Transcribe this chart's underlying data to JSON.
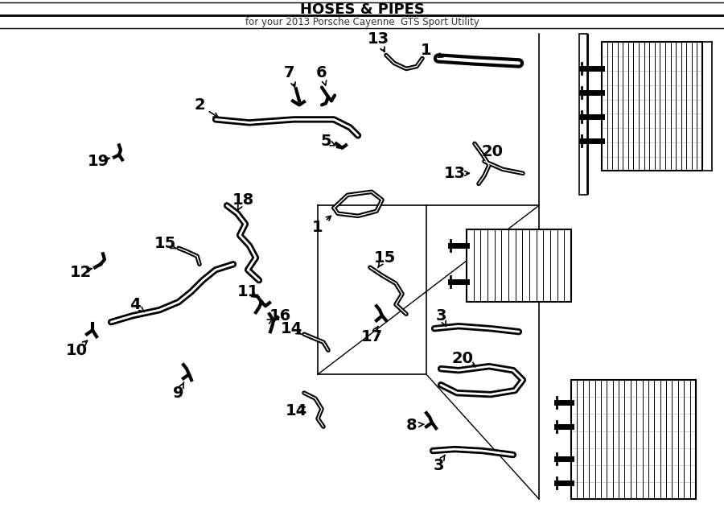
{
  "title": "HOSES & PIPES",
  "subtitle": "for your 2013 Porsche Cayenne  GTS Sport Utility",
  "bg_color": "#ffffff",
  "fg_color": "#000000",
  "fig_w": 9.0,
  "fig_h": 6.61,
  "dpi": 100
}
